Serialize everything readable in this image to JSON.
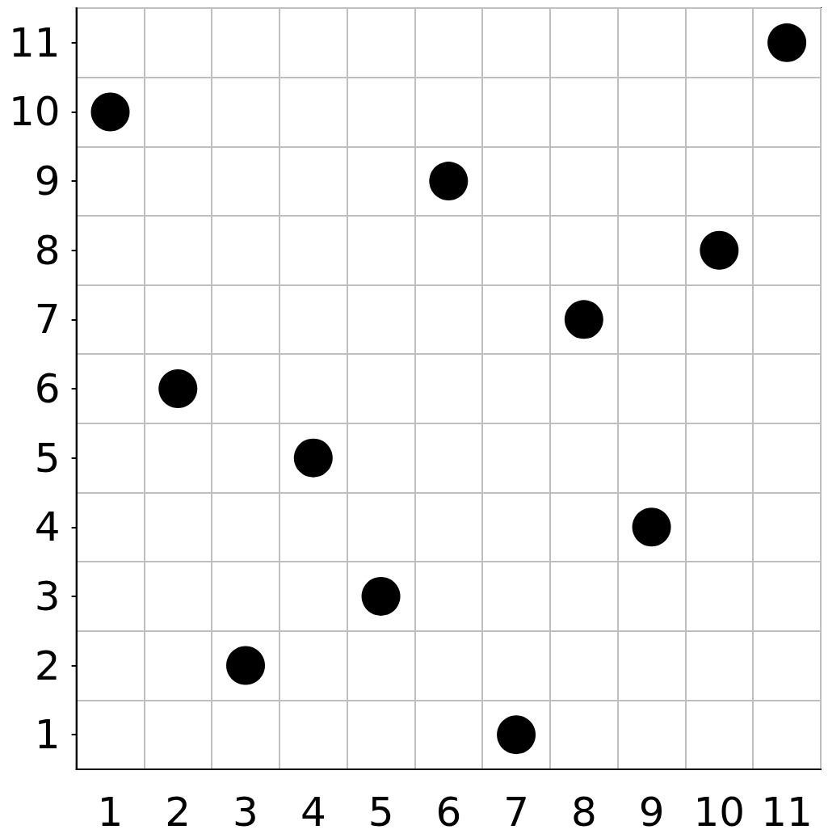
{
  "chart_data": {
    "type": "scatter",
    "categories": [
      "1",
      "2",
      "3",
      "4",
      "5",
      "6",
      "7",
      "8",
      "9",
      "10",
      "11"
    ],
    "values": [
      10,
      6,
      2,
      5,
      3,
      9,
      1,
      7,
      4,
      8,
      11
    ],
    "color": "#000000",
    "marker": "circle",
    "grid": true,
    "ylim": [
      0.5,
      11.5
    ],
    "yticks": [
      {
        "value": 0.5,
        "label": null
      },
      1,
      {
        "value": 1.5,
        "label": null
      },
      2,
      {
        "value": 2.5,
        "label": null
      },
      3,
      {
        "value": 3.5,
        "label": null
      },
      4,
      {
        "value": 4.5,
        "label": null
      },
      5,
      {
        "value": 5.5,
        "label": null
      },
      6,
      {
        "value": 6.5,
        "label": null
      },
      7,
      {
        "value": 7.5,
        "label": null
      },
      8,
      {
        "value": 8.5,
        "label": null
      },
      9,
      {
        "value": 9.5,
        "label": null
      },
      10,
      {
        "value": 10.5,
        "label": null
      },
      11,
      {
        "value": 11.5,
        "label": null
      }
    ]
  }
}
